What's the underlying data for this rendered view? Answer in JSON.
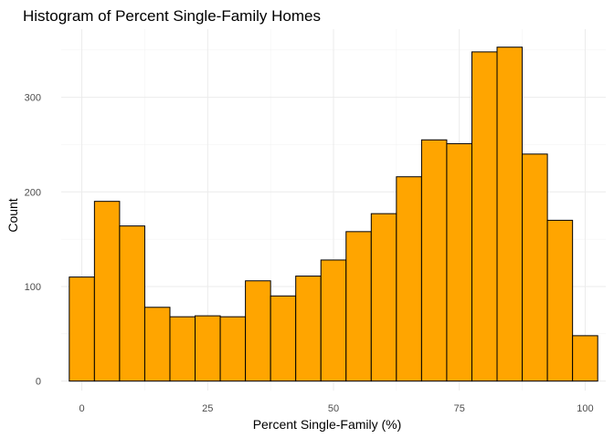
{
  "chart_data": {
    "type": "bar",
    "title": "Histogram of Percent Single-Family Homes",
    "xlabel": "Percent Single-Family (%)",
    "ylabel": "Count",
    "bin_width": 5,
    "bins": [
      {
        "center": 0,
        "count": 110
      },
      {
        "center": 5,
        "count": 190
      },
      {
        "center": 10,
        "count": 164
      },
      {
        "center": 15,
        "count": 78
      },
      {
        "center": 20,
        "count": 68
      },
      {
        "center": 25,
        "count": 69
      },
      {
        "center": 30,
        "count": 68
      },
      {
        "center": 35,
        "count": 106
      },
      {
        "center": 40,
        "count": 90
      },
      {
        "center": 45,
        "count": 111
      },
      {
        "center": 50,
        "count": 128
      },
      {
        "center": 55,
        "count": 158
      },
      {
        "center": 60,
        "count": 177
      },
      {
        "center": 65,
        "count": 216
      },
      {
        "center": 70,
        "count": 255
      },
      {
        "center": 75,
        "count": 251
      },
      {
        "center": 80,
        "count": 348
      },
      {
        "center": 85,
        "count": 353
      },
      {
        "center": 90,
        "count": 240
      },
      {
        "center": 95,
        "count": 170
      },
      {
        "center": 100,
        "count": 48
      }
    ],
    "xticks": [
      0,
      25,
      50,
      75,
      100
    ],
    "xtick_labels": [
      "0",
      "25",
      "50",
      "75",
      "100"
    ],
    "yticks": [
      0,
      100,
      200,
      300
    ],
    "ytick_labels": [
      "0",
      "100",
      "200",
      "300"
    ],
    "xlim": [
      -4.1,
      104.1
    ],
    "ylim": [
      -10,
      372
    ],
    "grid": true,
    "legend": "none",
    "fill_color": "#FFA500",
    "border_color": "#000000"
  }
}
